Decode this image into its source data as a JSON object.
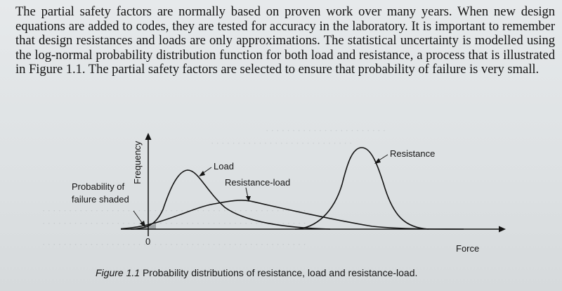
{
  "body_text": "The partial safety factors are normally based on proven work over many years. When new design equations are added to codes, they are tested for accuracy in the laboratory. It is important to remember that design resistances and loads are only approximations. The statistical uncertainty is modelled using the log-normal probability distribution function for both load and resistance, a process that is illustrated in Figure 1.1. The partial safety factors are selected to ensure that probability of failure is very small.",
  "figure": {
    "y_axis_label": "Frequency",
    "x_axis_label": "Force",
    "origin_label": "0",
    "curve_labels": {
      "load": "Load",
      "resistance": "Resistance",
      "resistance_load": "Resistance-load"
    },
    "annotation_line1": "Probability of",
    "annotation_line2": "failure shaded"
  },
  "caption": {
    "number": "Figure 1.1",
    "text": "Probability distributions of resistance, load and resistance-load."
  }
}
